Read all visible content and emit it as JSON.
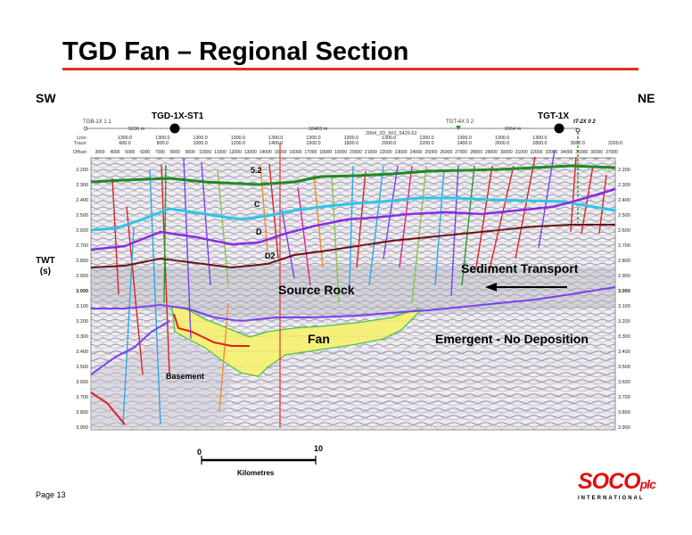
{
  "slide": {
    "title": "TGD Fan – Regional Section",
    "direction_left": "SW",
    "direction_right": "NE",
    "axis_label_line1": "TWT",
    "axis_label_line2": "(s)",
    "page_label": "Page 13",
    "logo_text": "SOCO",
    "logo_suffix": "plc",
    "logo_subtext": "INTERNATIONAL",
    "accent_color": "#e0301e"
  },
  "header": {
    "wells": {
      "tgb": "TGB-1X 1 1",
      "tgd_st1": "TGD-1X-ST1",
      "tgt4x": "TGT-4X 0 2",
      "tgt1x": "TGT-1X",
      "tt2x": "tT-2X 0 2"
    },
    "distances": {
      "d1": "5236 m",
      "d2": "18403 m",
      "d3": "6964 m"
    },
    "survey_label": "2004_2D_901_5429.62",
    "row_labels": {
      "line": "Line:",
      "trace": "Trace:",
      "offset": "Offset:"
    },
    "line_values": [
      "1300.0",
      "1300.0",
      "1300.0",
      "1300.0",
      "1300.0",
      "1300.0",
      "1300.0",
      "1300.0",
      "1300.0",
      "1300.0",
      "1300.0",
      "1300.0"
    ],
    "trace_values": [
      "600.0",
      "800.0",
      "1000.0",
      "1200.0",
      "1400.0",
      "1600.0",
      "1800.0",
      "2000.0",
      "2200.0",
      "2400.0",
      "2600.0",
      "2800.0",
      "3000.0",
      "3200.0"
    ],
    "offset_values": [
      "3000",
      "4000",
      "5000",
      "6000",
      "7000",
      "8000",
      "9000",
      "10000",
      "11000",
      "12000",
      "13000",
      "14000",
      "15000",
      "16000",
      "17000",
      "18000",
      "19000",
      "20000",
      "21000",
      "22000",
      "23000",
      "24000",
      "25000",
      "26000",
      "27000",
      "28000",
      "29000",
      "30000",
      "31000",
      "32000",
      "33000",
      "34000",
      "35000",
      "36000",
      "37000"
    ]
  },
  "time_axis": {
    "values": [
      "2.200",
      "2.300",
      "2.400",
      "2.500",
      "2.600",
      "2.700",
      "2.800",
      "2.900",
      "3.000",
      "3.100",
      "3.200",
      "3.300",
      "3.400",
      "3.500",
      "3.600",
      "3.700",
      "3.800",
      "3.900"
    ],
    "bold_value": "3.000"
  },
  "annotations": {
    "h52": "5.2",
    "hC": "C",
    "hD": "D",
    "hD2": "D2",
    "source_rock": "Source Rock",
    "sediment_transport": "Sediment Transport",
    "fan": "Fan",
    "emergent": "Emergent - No Deposition",
    "basement": "Basement"
  },
  "scale_bar": {
    "start": "0",
    "end": "10",
    "units": "Kilometres"
  },
  "horizons": [
    {
      "name": "5.2",
      "color": "#1f8a1f"
    },
    {
      "name": "C",
      "color": "#2ec5e8"
    },
    {
      "name": "D",
      "color": "#8a2be2"
    },
    {
      "name": "D2",
      "color": "#6b1111"
    },
    {
      "name": "Basement",
      "color": "#7b3ff0"
    }
  ],
  "fan_color": "#f5f07a"
}
